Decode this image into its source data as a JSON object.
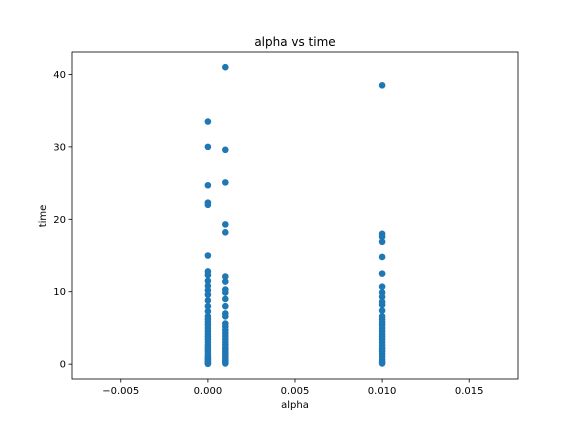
{
  "chart_data": {
    "type": "scatter",
    "title": "alpha vs time",
    "xlabel": "alpha",
    "ylabel": "time",
    "xlim": [
      -0.0078,
      0.0178
    ],
    "ylim": [
      -2.05,
      43.1
    ],
    "xticks": [
      -0.005,
      0.0,
      0.005,
      0.01,
      0.015
    ],
    "xtick_labels": [
      "−0.005",
      "0.000",
      "0.005",
      "0.010",
      "0.015"
    ],
    "yticks": [
      0,
      10,
      20,
      30,
      40
    ],
    "ytick_labels": [
      "0",
      "10",
      "20",
      "30",
      "40"
    ],
    "grid": false,
    "marker_color": "#1f77b4",
    "series": [
      {
        "x": [
          0.0,
          0.0,
          0.0,
          0.0,
          0.0,
          0.0,
          0.0,
          0.0,
          0.0,
          0.0,
          0.0,
          0.0,
          0.0,
          0.0,
          0.0,
          0.0,
          0.0,
          0.0,
          0.0,
          0.0,
          0.0,
          0.0,
          0.0,
          0.0,
          0.0,
          0.0,
          0.0,
          0.0,
          0.0,
          0.0,
          0.0,
          0.0,
          0.0,
          0.0,
          0.0,
          0.0,
          0.0,
          0.0,
          0.001,
          0.001,
          0.001,
          0.001,
          0.001,
          0.001,
          0.001,
          0.001,
          0.001,
          0.001,
          0.001,
          0.001,
          0.001,
          0.001,
          0.001,
          0.001,
          0.001,
          0.001,
          0.001,
          0.001,
          0.001,
          0.001,
          0.001,
          0.001,
          0.001,
          0.001,
          0.001,
          0.001,
          0.001,
          0.001,
          0.01,
          0.01,
          0.01,
          0.01,
          0.01,
          0.01,
          0.01,
          0.01,
          0.01,
          0.01,
          0.01,
          0.01,
          0.01,
          0.01,
          0.01,
          0.01,
          0.01,
          0.01,
          0.01,
          0.01,
          0.01,
          0.01,
          0.01,
          0.01,
          0.01,
          0.01,
          0.01,
          0.01,
          0.01,
          0.01
        ],
        "y": [
          33.5,
          30.0,
          24.7,
          22.3,
          22.0,
          15.0,
          12.8,
          12.3,
          11.5,
          10.8,
          10.2,
          9.6,
          8.8,
          8.0,
          7.3,
          6.6,
          6.2,
          5.8,
          5.4,
          5.0,
          4.6,
          4.2,
          3.8,
          3.4,
          3.0,
          2.6,
          2.3,
          2.0,
          1.7,
          1.4,
          1.1,
          0.9,
          0.7,
          0.5,
          0.35,
          0.2,
          0.1,
          0.05,
          41.0,
          29.6,
          25.1,
          19.3,
          18.2,
          12.1,
          11.4,
          10.3,
          9.9,
          9.0,
          8.0,
          7.0,
          6.6,
          5.6,
          5.2,
          4.7,
          4.3,
          3.9,
          3.5,
          3.1,
          2.7,
          2.3,
          2.0,
          1.7,
          1.4,
          1.1,
          0.8,
          0.5,
          0.3,
          0.1,
          38.5,
          18.0,
          17.6,
          16.9,
          14.8,
          12.5,
          10.7,
          9.9,
          9.3,
          8.6,
          8.2,
          7.4,
          6.6,
          6.2,
          5.8,
          5.4,
          5.0,
          4.6,
          4.2,
          3.8,
          3.4,
          3.0,
          2.6,
          2.2,
          1.8,
          1.4,
          1.0,
          0.6,
          0.3,
          0.1
        ]
      }
    ]
  }
}
